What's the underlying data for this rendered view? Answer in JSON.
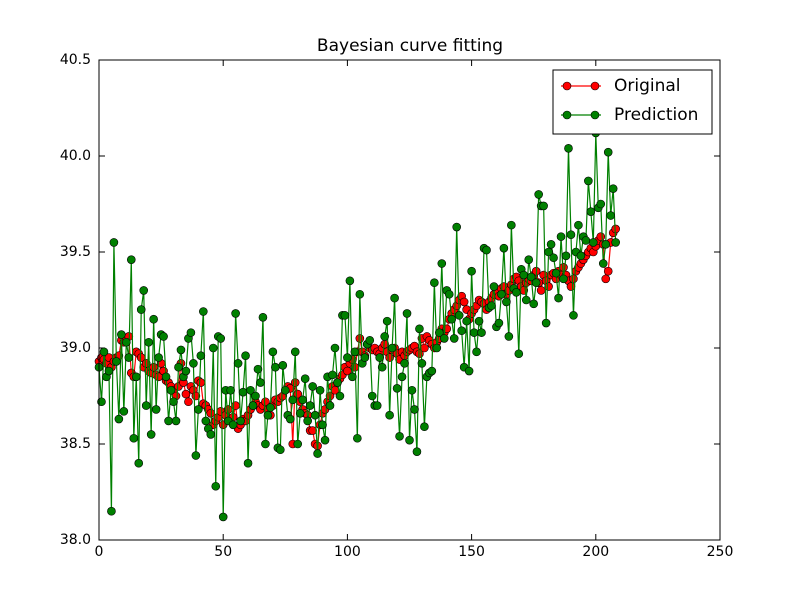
{
  "chart_data": {
    "type": "line",
    "title": "Bayesian curve fitting",
    "x": [
      0,
      1,
      2,
      3,
      4,
      5,
      6,
      7,
      8,
      9,
      10,
      11,
      12,
      13,
      14,
      15,
      16,
      17,
      18,
      19,
      20,
      21,
      22,
      23,
      24,
      25,
      26,
      27,
      28,
      29,
      30,
      31,
      32,
      33,
      34,
      35,
      36,
      37,
      38,
      39,
      40,
      41,
      42,
      43,
      44,
      45,
      46,
      47,
      48,
      49,
      50,
      51,
      52,
      53,
      54,
      55,
      56,
      57,
      58,
      59,
      60,
      61,
      62,
      63,
      64,
      65,
      66,
      67,
      68,
      69,
      70,
      71,
      72,
      73,
      74,
      75,
      76,
      77,
      78,
      79,
      80,
      81,
      82,
      83,
      84,
      85,
      86,
      87,
      88,
      89,
      90,
      91,
      92,
      93,
      94,
      95,
      96,
      97,
      98,
      99,
      100,
      101,
      102,
      103,
      104,
      105,
      106,
      107,
      108,
      109,
      110,
      111,
      112,
      113,
      114,
      115,
      116,
      117,
      118,
      119,
      120,
      121,
      122,
      123,
      124,
      125,
      126,
      127,
      128,
      129,
      130,
      131,
      132,
      133,
      134,
      135,
      136,
      137,
      138,
      139,
      140,
      141,
      142,
      143,
      144,
      145,
      146,
      147,
      148,
      149,
      150,
      151,
      152,
      153,
      154,
      155,
      156,
      157,
      158,
      159,
      160,
      161,
      162,
      163,
      164,
      165,
      166,
      167,
      168,
      169,
      170,
      171,
      172,
      173,
      174,
      175,
      176,
      177,
      178,
      179,
      180,
      181,
      182,
      183,
      184,
      185,
      186,
      187,
      188,
      189,
      190,
      191,
      192,
      193,
      194,
      195,
      196,
      197,
      198,
      199,
      200,
      201,
      202,
      203,
      204,
      205,
      206,
      207,
      208
    ],
    "series": [
      {
        "name": "Original",
        "color": "#ff0000",
        "values": [
          38.93,
          38.95,
          38.94,
          38.92,
          38.95,
          38.9,
          38.93,
          38.95,
          38.96,
          39.04,
          39.03,
          39.05,
          39.06,
          38.87,
          38.85,
          38.98,
          38.97,
          38.95,
          38.9,
          38.92,
          38.88,
          38.87,
          38.9,
          38.86,
          38.85,
          38.92,
          38.88,
          38.83,
          38.82,
          38.8,
          38.78,
          38.75,
          38.8,
          38.92,
          38.82,
          38.76,
          38.72,
          38.8,
          38.78,
          38.75,
          38.83,
          38.82,
          38.71,
          38.7,
          38.68,
          38.66,
          38.6,
          38.62,
          38.64,
          38.67,
          38.6,
          38.65,
          38.68,
          38.62,
          38.64,
          38.7,
          38.58,
          38.6,
          38.63,
          38.62,
          38.65,
          38.68,
          38.7,
          38.72,
          38.7,
          38.68,
          38.7,
          38.72,
          38.68,
          38.65,
          38.7,
          38.73,
          38.72,
          38.74,
          38.75,
          38.78,
          38.8,
          38.79,
          38.5,
          38.82,
          38.76,
          38.72,
          38.68,
          38.66,
          38.65,
          38.57,
          38.57,
          38.5,
          38.49,
          38.6,
          38.66,
          38.68,
          38.72,
          38.75,
          38.8,
          38.78,
          38.82,
          38.84,
          38.86,
          38.9,
          38.88,
          38.92,
          38.94,
          38.9,
          38.98,
          39.05,
          38.98,
          38.96,
          39.02,
          39.0,
          38.99,
          39.0,
          38.98,
          38.97,
          39.0,
          39.02,
          38.98,
          38.95,
          38.99,
          39.0,
          38.97,
          38.94,
          38.98,
          38.96,
          38.98,
          38.99,
          39.0,
          39.01,
          38.98,
          38.97,
          39.05,
          39.0,
          39.06,
          39.04,
          39.02,
          39.0,
          39.03,
          39.05,
          39.1,
          39.08,
          39.1,
          39.15,
          39.18,
          39.2,
          39.22,
          39.25,
          39.27,
          39.24,
          39.2,
          39.15,
          39.18,
          39.2,
          39.22,
          39.25,
          39.24,
          39.23,
          39.2,
          39.24,
          39.26,
          39.28,
          39.3,
          39.27,
          39.31,
          39.32,
          39.28,
          39.3,
          39.33,
          39.36,
          39.37,
          39.35,
          39.32,
          39.3,
          39.34,
          39.36,
          39.35,
          39.38,
          39.4,
          39.34,
          39.3,
          39.38,
          39.35,
          39.32,
          39.38,
          39.39,
          39.36,
          39.4,
          39.38,
          39.42,
          39.38,
          39.35,
          39.32,
          39.36,
          39.4,
          39.42,
          39.44,
          39.46,
          39.48,
          39.5,
          39.52,
          39.5,
          39.53,
          39.56,
          39.58,
          39.54,
          39.36,
          39.4,
          39.55,
          39.6,
          39.62
        ]
      },
      {
        "name": "Prediction",
        "color": "#008000",
        "values": [
          38.9,
          38.72,
          38.98,
          38.85,
          38.88,
          38.15,
          39.55,
          38.93,
          38.63,
          39.07,
          38.67,
          39.03,
          38.95,
          39.46,
          38.53,
          38.85,
          38.4,
          39.2,
          39.3,
          38.7,
          39.03,
          38.55,
          39.15,
          38.68,
          38.95,
          39.07,
          39.06,
          38.85,
          38.62,
          38.78,
          38.72,
          38.62,
          38.9,
          38.99,
          38.85,
          38.88,
          39.05,
          39.08,
          38.92,
          38.44,
          38.68,
          38.96,
          39.19,
          38.62,
          38.58,
          38.55,
          39.0,
          38.28,
          39.06,
          39.05,
          38.12,
          38.78,
          38.62,
          38.78,
          38.6,
          39.18,
          38.92,
          38.62,
          38.77,
          38.96,
          38.4,
          38.78,
          38.7,
          38.75,
          38.89,
          38.82,
          39.16,
          38.5,
          38.65,
          38.69,
          38.98,
          38.9,
          38.48,
          38.47,
          38.91,
          38.78,
          38.65,
          38.63,
          38.73,
          38.98,
          38.5,
          38.66,
          38.73,
          38.84,
          38.62,
          38.7,
          38.8,
          38.65,
          38.45,
          38.78,
          38.6,
          38.52,
          38.85,
          38.7,
          38.86,
          39.0,
          38.82,
          38.75,
          39.17,
          39.17,
          38.95,
          39.35,
          38.85,
          38.98,
          38.53,
          39.28,
          38.92,
          38.95,
          39.02,
          39.04,
          38.75,
          38.7,
          38.7,
          38.95,
          38.9,
          39.06,
          39.14,
          38.65,
          39.0,
          39.26,
          38.79,
          38.54,
          38.85,
          38.92,
          39.18,
          38.52,
          38.78,
          38.68,
          38.46,
          39.1,
          38.92,
          38.59,
          38.85,
          38.87,
          38.88,
          39.34,
          39.0,
          39.08,
          39.44,
          39.05,
          39.3,
          39.28,
          39.15,
          39.05,
          39.63,
          39.17,
          39.09,
          38.9,
          39.14,
          38.88,
          39.4,
          39.08,
          38.98,
          39.14,
          39.08,
          39.52,
          39.51,
          39.21,
          39.22,
          39.32,
          39.11,
          39.13,
          39.28,
          39.52,
          39.24,
          39.06,
          39.64,
          39.31,
          39.29,
          38.97,
          39.41,
          39.38,
          39.25,
          39.46,
          39.37,
          39.23,
          39.34,
          39.8,
          39.74,
          39.74,
          39.13,
          39.5,
          39.54,
          39.47,
          39.39,
          39.26,
          39.58,
          39.36,
          39.48,
          40.04,
          39.59,
          39.17,
          39.5,
          39.64,
          39.48,
          39.58,
          39.56,
          39.87,
          39.71,
          39.55,
          40.12,
          39.73,
          39.75,
          39.44,
          39.54,
          40.02,
          39.69,
          39.83,
          39.55
        ]
      }
    ],
    "xlim": [
      0,
      250
    ],
    "xticks": [
      0,
      50,
      100,
      150,
      200,
      250
    ],
    "ylim": [
      38,
      40.5
    ],
    "yticks": [
      {
        "value": 38,
        "label": "38.0"
      },
      38.5,
      {
        "value": 39,
        "label": "39.0"
      },
      39.5,
      {
        "value": 40,
        "label": "40.0"
      },
      40.5
    ],
    "legend": "upper right"
  }
}
